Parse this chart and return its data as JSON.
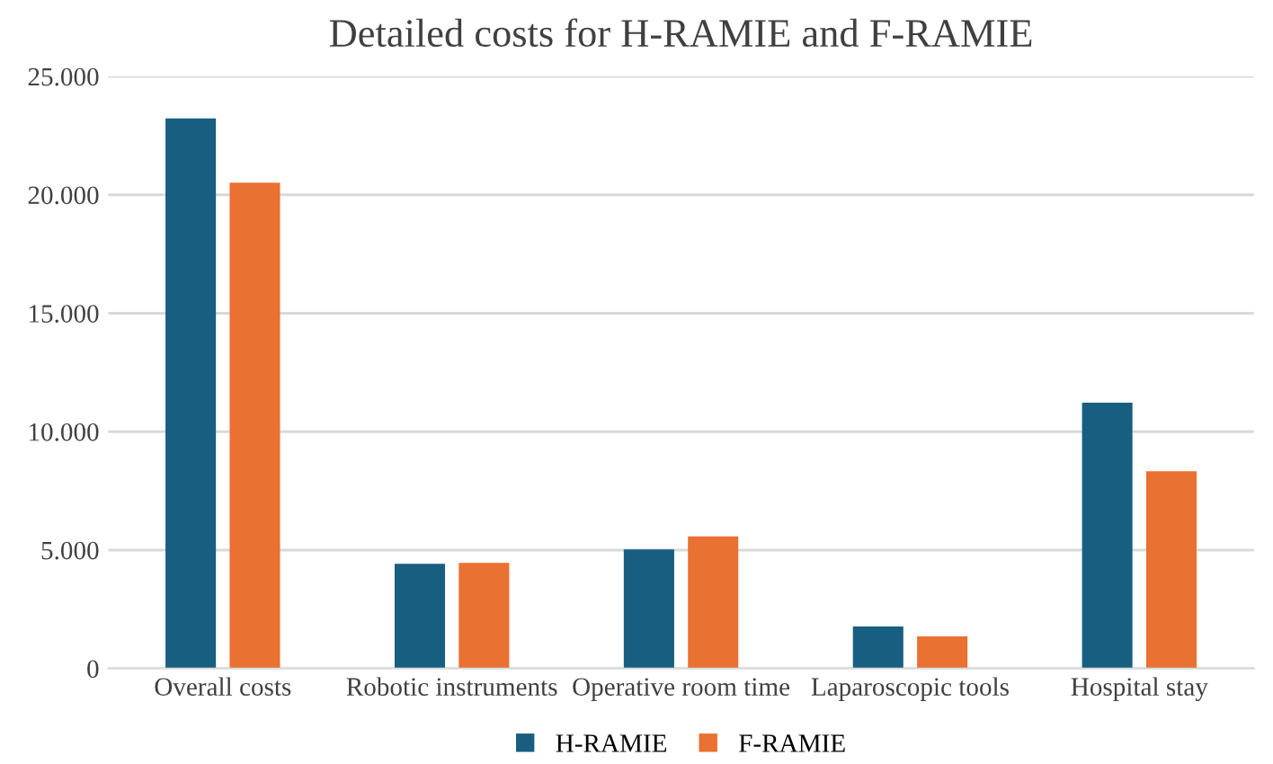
{
  "chart_data": {
    "type": "bar",
    "title": "Detailed costs for H-RAMIE and F-RAMIE",
    "categories": [
      "Overall costs",
      "Robotic instruments",
      "Operative room time",
      "Laparoscopic tools",
      "Hospital stay"
    ],
    "series": [
      {
        "name": "H-RAMIE",
        "color": "#175e81",
        "values": [
          23230,
          4420,
          5030,
          1770,
          11220
        ]
      },
      {
        "name": "F-RAMIE",
        "color": "#e97132",
        "values": [
          20510,
          4460,
          5580,
          1360,
          8330
        ]
      }
    ],
    "ylim": [
      0,
      25000
    ],
    "yticks": [
      0,
      {
        "value": 5000,
        "label": "5.000"
      },
      {
        "value": 10000,
        "label": "10.000"
      },
      {
        "value": 15000,
        "label": "15.000"
      },
      {
        "value": 20000,
        "label": "20.000"
      },
      {
        "value": 25000,
        "label": "25.000"
      }
    ],
    "grid": "y",
    "legend": "bottom"
  }
}
